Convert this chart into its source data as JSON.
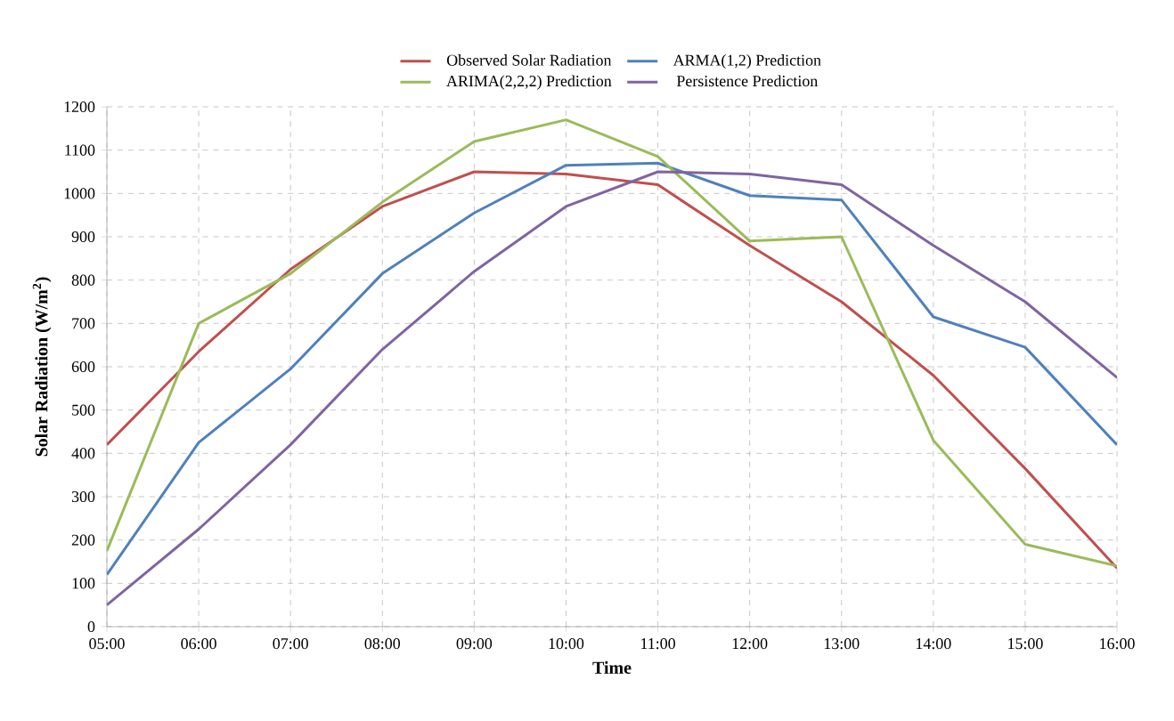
{
  "chart_data": {
    "type": "line",
    "xlabel": "Time",
    "ylabel": "Solar Radiation (W/m$^{2}$)",
    "categories": [
      "05:00",
      "06:00",
      "07:00",
      "08:00",
      "09:00",
      "10:00",
      "11:00",
      "12:00",
      "13:00",
      "14:00",
      "15:00",
      "16:00"
    ],
    "series": [
      {
        "name": "Observed Solar Radiation",
        "color": "#c0504d",
        "values": [
          420,
          635,
          825,
          970,
          1050,
          1045,
          1020,
          880,
          750,
          580,
          365,
          135
        ]
      },
      {
        "name": "ARMA(1,2) Prediction",
        "color": "#4f81bd",
        "values": [
          120,
          425,
          595,
          815,
          955,
          1065,
          1070,
          995,
          985,
          715,
          645,
          420
        ]
      },
      {
        "name": "ARIMA(2,2,2) Prediction",
        "color": "#9bbb59",
        "values": [
          175,
          700,
          815,
          980,
          1120,
          1170,
          1085,
          890,
          900,
          430,
          190,
          140
        ]
      },
      {
        "name": "Persistence Prediction",
        "color": "#8064a2",
        "values": [
          50,
          225,
          420,
          640,
          820,
          970,
          1050,
          1045,
          1020,
          880,
          750,
          575
        ]
      }
    ],
    "ylim": [
      0,
      1200
    ],
    "yticks": [
      0,
      100,
      200,
      300,
      400,
      500,
      600,
      700,
      800,
      900,
      1000,
      1100,
      1200
    ],
    "grid": true,
    "legend": "top",
    "marker": "none",
    "line_style": "solid"
  }
}
